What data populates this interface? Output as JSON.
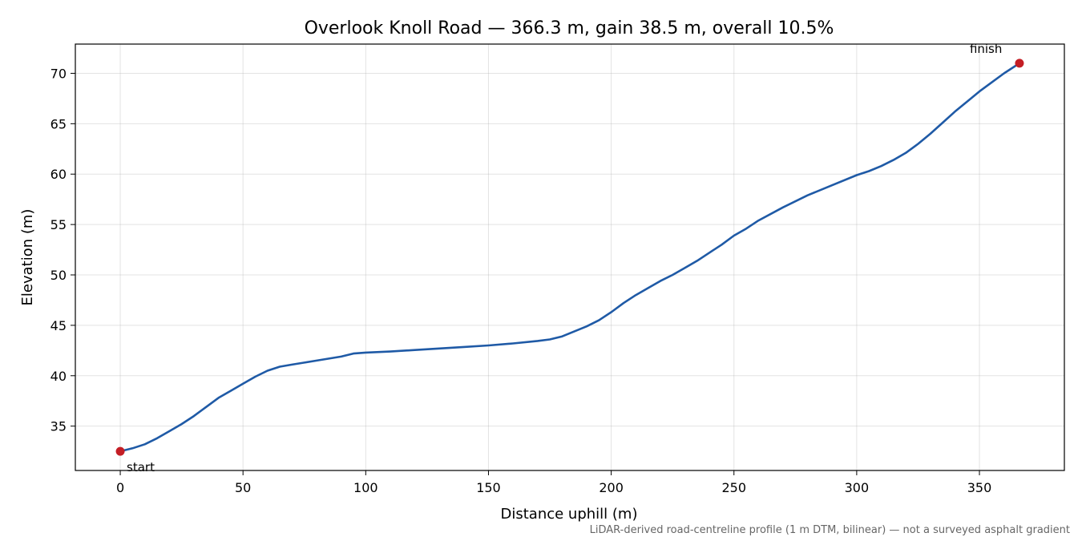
{
  "chart_data": {
    "type": "line",
    "title": "Overlook Knoll Road — 366.3 m, gain 38.5 m, overall 10.5%",
    "xlabel": "Distance uphill (m)",
    "ylabel": "Elevation (m)",
    "xlim": [
      -18.3,
      384.6
    ],
    "ylim": [
      30.6,
      72.9
    ],
    "xticks": [
      0,
      50,
      100,
      150,
      200,
      250,
      300,
      350
    ],
    "yticks": [
      35,
      40,
      45,
      50,
      55,
      60,
      65,
      70
    ],
    "grid": true,
    "series": [
      {
        "color": "#1f5aa6",
        "x": [
          0,
          5,
          10,
          15,
          20,
          25,
          30,
          35,
          40,
          45,
          50,
          55,
          60,
          65,
          70,
          75,
          80,
          85,
          90,
          95,
          100,
          110,
          120,
          130,
          140,
          150,
          160,
          170,
          175,
          180,
          185,
          190,
          195,
          200,
          205,
          210,
          215,
          220,
          225,
          230,
          235,
          240,
          245,
          250,
          255,
          260,
          270,
          280,
          290,
          300,
          305,
          310,
          315,
          320,
          325,
          330,
          335,
          340,
          345,
          350,
          355,
          360,
          366.3
        ],
        "y": [
          32.5,
          32.8,
          33.2,
          33.8,
          34.5,
          35.2,
          36.0,
          36.9,
          37.8,
          38.5,
          39.2,
          39.9,
          40.5,
          40.9,
          41.1,
          41.3,
          41.5,
          41.7,
          41.9,
          42.2,
          42.3,
          42.4,
          42.55,
          42.7,
          42.85,
          43.0,
          43.2,
          43.45,
          43.6,
          43.9,
          44.4,
          44.9,
          45.5,
          46.3,
          47.2,
          48.0,
          48.7,
          49.4,
          50.0,
          50.7,
          51.4,
          52.2,
          53.0,
          53.9,
          54.6,
          55.4,
          56.7,
          57.9,
          58.9,
          59.9,
          60.3,
          60.8,
          61.4,
          62.1,
          63.0,
          64.0,
          65.1,
          66.2,
          67.2,
          68.2,
          69.1,
          70.0,
          71.0
        ]
      }
    ],
    "markers": [
      {
        "x": 0,
        "y": 32.5,
        "color": "#c41e25",
        "label": "start"
      },
      {
        "x": 366.3,
        "y": 71.0,
        "color": "#c41e25",
        "label": "finish"
      }
    ],
    "caption": "LiDAR-derived road-centreline profile (1 m DTM, bilinear) — not a surveyed asphalt gradient"
  }
}
